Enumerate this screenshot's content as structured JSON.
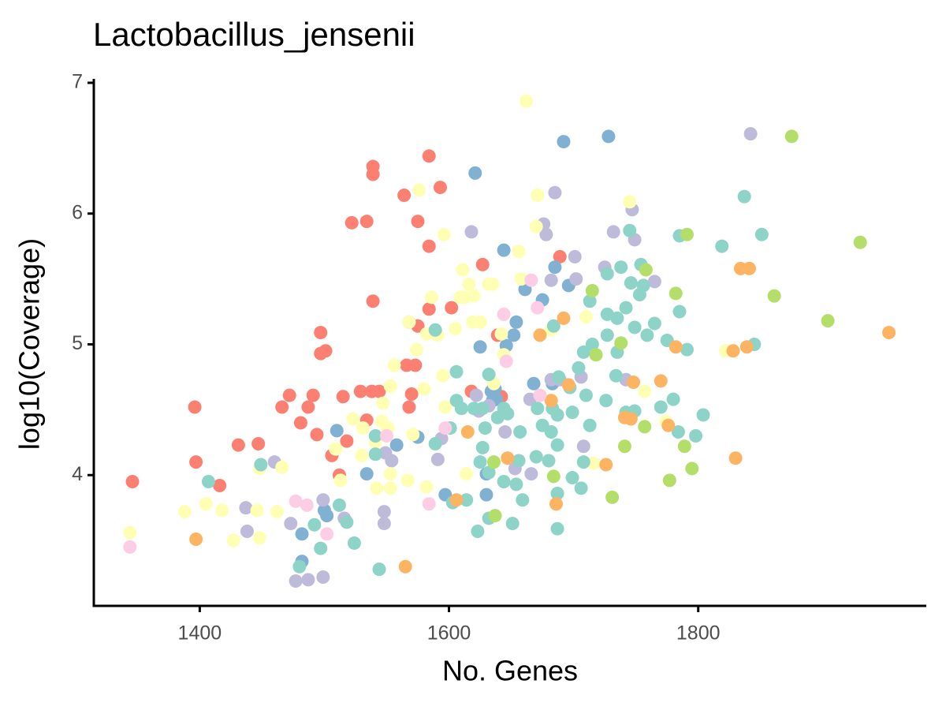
{
  "chart_data": {
    "type": "scatter",
    "title": "Lactobacillus_jensenii",
    "x_label": "No. Genes",
    "y_label": "log10(Coverage)",
    "xlim": [
      1315,
      1983
    ],
    "ylim": [
      3.0,
      7.03
    ],
    "xticks": [
      1400,
      1600,
      1800
    ],
    "yticks": [
      4,
      5,
      6,
      7
    ],
    "grid": false,
    "series": [
      {
        "color": "#fb8072",
        "x": [
          1346,
          1396,
          1397,
          1416,
          1431,
          1447,
          1466,
          1472,
          1481,
          1487,
          1491,
          1494,
          1497,
          1497,
          1501,
          1506,
          1512,
          1515,
          1518,
          1522,
          1534,
          1529,
          1534,
          1539,
          1539,
          1539,
          1538,
          1544,
          1564,
          1575,
          1575,
          1566,
          1573,
          1568,
          1570,
          1584,
          1584,
          1593,
          1602,
          1584,
          1627,
          1639,
          1642,
          1689,
          1618,
          1636
        ],
        "y": [
          3.95,
          4.52,
          4.1,
          3.92,
          4.23,
          4.24,
          4.52,
          4.61,
          4.4,
          4.52,
          4.61,
          4.31,
          5.09,
          4.93,
          4.95,
          4.15,
          4.0,
          4.6,
          4.26,
          5.93,
          5.94,
          4.64,
          4.42,
          5.33,
          6.36,
          6.3,
          4.64,
          4.64,
          6.14,
          5.94,
          5.14,
          4.84,
          4.84,
          4.52,
          4.62,
          5.75,
          6.44,
          6.2,
          5.28,
          5.27,
          5.61,
          5.07,
          4.6,
          5.67,
          4.64,
          4.69
        ]
      },
      {
        "color": "#80b1d3",
        "x": [
          1621,
          1728,
          1692,
          1644,
          1661,
          1654,
          1652,
          1625,
          1646,
          1637,
          1634,
          1638,
          1668,
          1683,
          1685,
          1675,
          1696,
          1510,
          1534,
          1558,
          1575,
          1500,
          1502,
          1482,
          1482,
          1630,
          1635,
          1630,
          1597
        ],
        "y": [
          6.31,
          6.59,
          6.55,
          5.72,
          5.42,
          5.17,
          5.07,
          4.98,
          4.99,
          4.66,
          4.64,
          4.58,
          4.7,
          4.7,
          5.59,
          5.34,
          5.45,
          4.34,
          4.01,
          4.23,
          4.29,
          3.73,
          3.69,
          3.55,
          3.34,
          3.85,
          4.57,
          4.01,
          3.85
        ]
      },
      {
        "color": "#bebada",
        "x": [
          1842,
          1747,
          1749,
          1685,
          1618,
          1676,
          1678,
          1732,
          1701,
          1725,
          1702,
          1765,
          1682,
          1682,
          1689,
          1706,
          1742,
          1708,
          1665,
          1645,
          1666,
          1653,
          1624,
          1632,
          1594,
          1591,
          1554,
          1549,
          1460,
          1437,
          1438,
          1473,
          1499,
          1516,
          1548,
          1548,
          1477,
          1487,
          1499,
          1622,
          1568
        ],
        "y": [
          6.61,
          6.03,
          5.8,
          6.16,
          5.86,
          5.92,
          5.84,
          5.86,
          5.67,
          5.59,
          5.5,
          5.48,
          5.49,
          4.73,
          4.73,
          4.75,
          4.73,
          4.22,
          4.58,
          4.33,
          4.01,
          4.05,
          4.49,
          4.53,
          4.28,
          4.12,
          4.11,
          4.17,
          4.1,
          3.75,
          3.57,
          3.63,
          3.81,
          3.67,
          3.72,
          3.63,
          3.19,
          3.2,
          3.22,
          4.61,
          5.17
        ]
      },
      {
        "color": "#ffffb3",
        "x": [
          1662,
          1576,
          1671,
          1596,
          1745,
          1670,
          1611,
          1609,
          1613,
          1586,
          1605,
          1591,
          1574,
          1582,
          1568,
          1619,
          1625,
          1632,
          1635,
          1616,
          1620,
          1656,
          1658,
          1710,
          1644,
          1636,
          1595,
          1580,
          1571,
          1556,
          1553,
          1547,
          1546,
          1551,
          1531,
          1541,
          1530,
          1553,
          1567,
          1582,
          1523,
          1466,
          1448,
          1418,
          1388,
          1344,
          1405,
          1427,
          1446,
          1448,
          1462,
          1513,
          1542,
          1553,
          1614,
          1597,
          1822,
          1757,
          1774,
          1716,
          1682,
          1642,
          1625,
          1509
        ],
        "y": [
          6.86,
          6.18,
          6.14,
          5.84,
          6.09,
          5.9,
          5.57,
          5.36,
          5.36,
          5.36,
          5.12,
          5.07,
          4.96,
          5.08,
          5.17,
          5.17,
          5.17,
          5.46,
          5.46,
          5.46,
          5.37,
          5.71,
          5.5,
          5.21,
          4.92,
          4.7,
          4.76,
          4.66,
          4.31,
          4.84,
          4.68,
          4.55,
          4.41,
          4.36,
          4.36,
          4.25,
          4.15,
          4.01,
          3.96,
          3.91,
          4.43,
          4.06,
          4.05,
          3.73,
          3.72,
          3.56,
          3.78,
          3.5,
          3.73,
          3.52,
          3.72,
          3.96,
          3.9,
          3.9,
          4.01,
          4.52,
          4.95,
          4.64,
          4.41,
          4.09,
          5.11,
          5.08,
          5.17,
          4.2
        ]
      },
      {
        "color": "#8dd3c7",
        "x": [
          1837,
          1851,
          1819,
          1785,
          1745,
          1727,
          1738,
          1754,
          1713,
          1727,
          1742,
          1746,
          1753,
          1756,
          1749,
          1759,
          1765,
          1775,
          1785,
          1791,
          1845,
          1715,
          1735,
          1708,
          1734,
          1742,
          1749,
          1770,
          1780,
          1784,
          1804,
          1798,
          1726,
          1713,
          1699,
          1710,
          1697,
          1704,
          1688,
          1684,
          1727,
          1735,
          1687,
          1683,
          1671,
          1675,
          1682,
          1687,
          1680,
          1670,
          1708,
          1699,
          1657,
          1656,
          1644,
          1632,
          1625,
          1627,
          1644,
          1647,
          1632,
          1639,
          1629,
          1620,
          1610,
          1606,
          1601,
          1659,
          1651,
          1632,
          1623,
          1614,
          1603,
          1589,
          1541,
          1541,
          1518,
          1524,
          1492,
          1497,
          1512,
          1480,
          1407,
          1449,
          1589,
          1606,
          1627,
          1687,
          1706,
          1654,
          1544,
          1687
        ],
        "y": [
          6.13,
          5.84,
          5.75,
          5.83,
          5.87,
          5.54,
          5.59,
          5.61,
          5.33,
          5.23,
          5.28,
          5.47,
          5.38,
          5.45,
          5.13,
          5.07,
          5.16,
          5.03,
          5.25,
          4.96,
          5.0,
          5.0,
          4.94,
          4.94,
          4.76,
          4.48,
          4.49,
          4.52,
          4.58,
          4.33,
          4.46,
          4.3,
          4.57,
          4.38,
          4.48,
          4.61,
          4.67,
          4.82,
          4.75,
          5.14,
          5.07,
          5.2,
          4.46,
          4.51,
          4.51,
          4.38,
          4.33,
          4.23,
          4.11,
          4.14,
          4.1,
          3.98,
          4.33,
          4.11,
          3.95,
          4.02,
          4.1,
          4.21,
          4.51,
          4.47,
          4.77,
          4.44,
          4.36,
          4.51,
          4.51,
          4.57,
          4.36,
          3.81,
          3.63,
          3.67,
          3.57,
          3.81,
          3.79,
          4.24,
          4.3,
          4.16,
          3.64,
          3.48,
          3.62,
          3.44,
          3.77,
          3.3,
          3.95,
          4.08,
          5.11,
          4.79,
          4.51,
          3.86,
          3.9,
          3.93,
          3.28,
          3.59
        ]
      },
      {
        "color": "#b3de69",
        "x": [
          1875,
          1930,
          1791,
          1904,
          1861,
          1782,
          1715,
          1758,
          1738,
          1718,
          1789,
          1795,
          1777,
          1741,
          1757,
          1684,
          1731,
          1636,
          1637
        ],
        "y": [
          6.59,
          5.78,
          5.84,
          5.18,
          5.37,
          5.39,
          5.41,
          5.57,
          5.01,
          4.92,
          4.22,
          4.05,
          3.96,
          4.22,
          4.37,
          3.99,
          3.83,
          4.1,
          3.69
        ]
      },
      {
        "color": "#fdb462",
        "x": [
          1953,
          1834,
          1841,
          1839,
          1828,
          1782,
          1692,
          1673,
          1748,
          1770,
          1746,
          1741,
          1776,
          1696,
          1682,
          1726,
          1830,
          1686,
          1647,
          1606,
          1615,
          1565,
          1397
        ],
        "y": [
          5.09,
          5.58,
          5.58,
          4.98,
          4.95,
          4.98,
          5.2,
          5.07,
          4.71,
          4.72,
          4.43,
          4.44,
          4.38,
          4.69,
          4.57,
          4.08,
          4.13,
          3.78,
          4.13,
          3.81,
          4.33,
          3.3,
          3.51
        ]
      },
      {
        "color": "#fccde5",
        "x": [
          1344,
          1477,
          1486,
          1502,
          1644,
          1666,
          1671,
          1646,
          1597,
          1584,
          1673,
          1550
        ],
        "y": [
          3.45,
          3.8,
          3.77,
          3.55,
          5.23,
          5.49,
          5.28,
          4.87,
          4.36,
          3.78,
          4.61,
          4.3
        ]
      }
    ]
  }
}
